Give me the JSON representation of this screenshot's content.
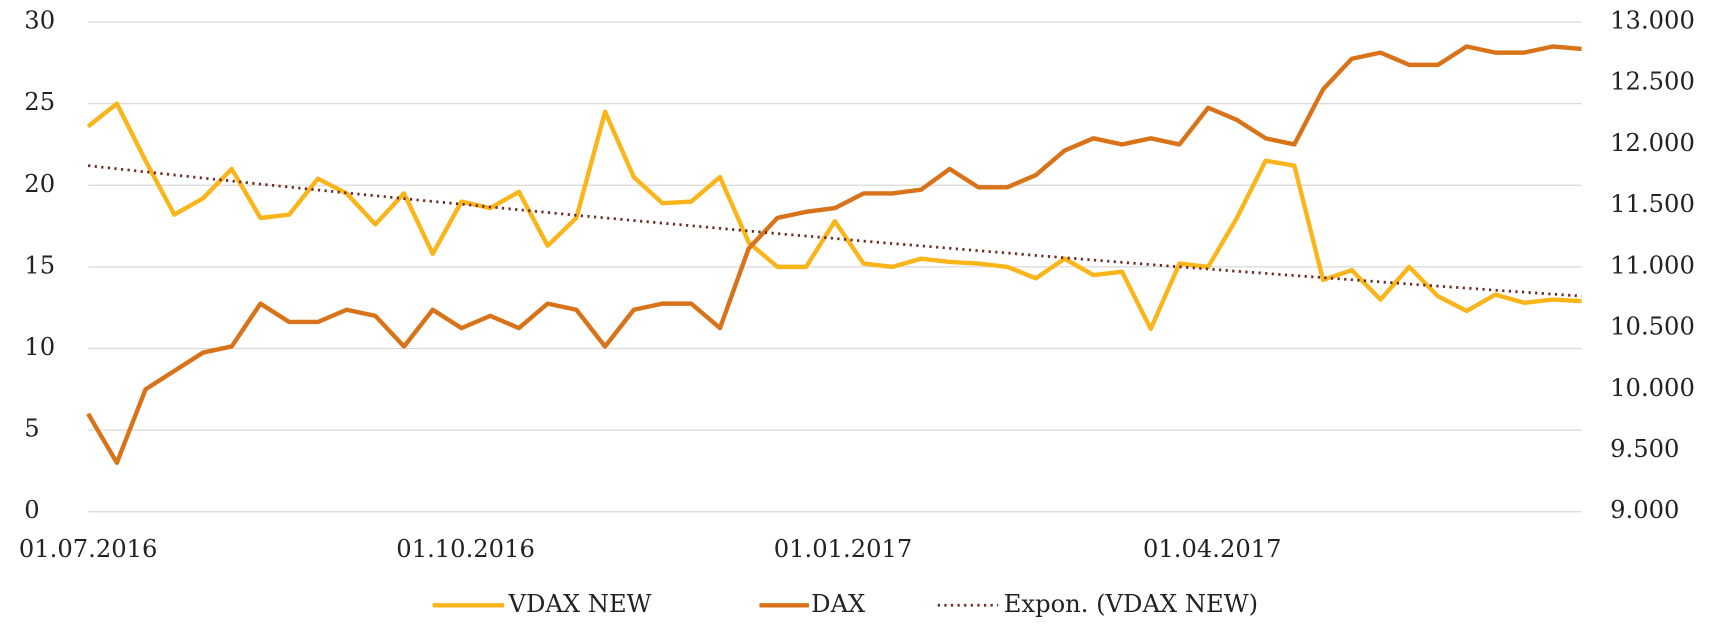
{
  "chart_data": {
    "type": "line",
    "x": [
      "01.07.2016",
      "08.07.2016",
      "15.07.2016",
      "22.07.2016",
      "29.07.2016",
      "05.08.2016",
      "12.08.2016",
      "19.08.2016",
      "26.08.2016",
      "02.09.2016",
      "09.09.2016",
      "16.09.2016",
      "23.09.2016",
      "30.09.2016",
      "07.10.2016",
      "14.10.2016",
      "21.10.2016",
      "28.10.2016",
      "04.11.2016",
      "11.11.2016",
      "18.11.2016",
      "25.11.2016",
      "02.12.2016",
      "09.12.2016",
      "16.12.2016",
      "23.12.2016",
      "30.12.2016",
      "06.01.2017",
      "13.01.2017",
      "20.01.2017",
      "27.01.2017",
      "03.02.2017",
      "10.02.2017",
      "17.02.2017",
      "24.02.2017",
      "03.03.2017",
      "10.03.2017",
      "17.03.2017",
      "24.03.2017",
      "31.03.2017",
      "07.04.2017",
      "14.04.2017",
      "21.04.2017",
      "28.04.2017",
      "05.05.2017",
      "12.05.2017",
      "19.05.2017",
      "26.05.2017",
      "02.06.2017",
      "09.06.2017",
      "16.06.2017",
      "23.06.2017",
      "30.06.2017"
    ],
    "series": [
      {
        "name": "VDAX NEW",
        "color": "#f9b51a",
        "style": "solid",
        "axis": "y",
        "values": [
          23.6,
          25.0,
          21.5,
          18.2,
          19.2,
          21.0,
          18.0,
          18.2,
          20.4,
          19.5,
          17.6,
          19.5,
          15.8,
          19.0,
          18.6,
          19.6,
          16.3,
          18.0,
          24.5,
          20.5,
          18.9,
          19.0,
          20.5,
          16.5,
          15.0,
          15.0,
          17.8,
          15.2,
          15.0,
          15.5,
          15.3,
          15.2,
          15.0,
          14.3,
          15.5,
          14.5,
          14.7,
          11.2,
          15.2,
          15.0,
          18.0,
          21.5,
          21.2,
          14.2,
          14.8,
          13.0,
          15.0,
          13.2,
          12.3,
          13.3,
          12.8,
          13.0,
          12.9
        ]
      },
      {
        "name": "DAX",
        "color": "#d9731a",
        "style": "solid",
        "axis": "y2",
        "values": [
          9800,
          9400,
          10000,
          10150,
          10300,
          10350,
          10700,
          10550,
          10550,
          10650,
          10600,
          10350,
          10650,
          10500,
          10600,
          10500,
          10700,
          10650,
          10350,
          10650,
          10700,
          10700,
          10500,
          11150,
          11400,
          11450,
          11480,
          11600,
          11600,
          11630,
          11800,
          11650,
          11650,
          11750,
          11950,
          12050,
          12000,
          12050,
          12000,
          12300,
          12200,
          12050,
          12000,
          12450,
          12700,
          12750,
          12650,
          12650,
          12800,
          12750,
          12750,
          12800,
          12780
        ]
      },
      {
        "name": "Expon. (VDAX NEW)",
        "color": "#6b2a24",
        "style": "dotted",
        "axis": "y",
        "values": [
          21.2,
          21.01,
          20.82,
          20.63,
          20.44,
          20.26,
          20.07,
          19.89,
          19.71,
          19.53,
          19.36,
          19.18,
          19.01,
          18.84,
          18.67,
          18.5,
          18.33,
          18.16,
          18.0,
          17.84,
          17.68,
          17.52,
          17.36,
          17.2,
          17.04,
          16.89,
          16.74,
          16.58,
          16.43,
          16.29,
          16.14,
          15.99,
          15.85,
          15.7,
          15.56,
          15.42,
          15.28,
          15.14,
          15.0,
          14.87,
          14.73,
          14.6,
          14.47,
          14.34,
          14.21,
          14.08,
          13.95,
          13.82,
          13.7,
          13.57,
          13.45,
          13.33,
          13.21
        ]
      }
    ],
    "xlim": [
      "01.07.2016",
      "30.06.2017"
    ],
    "xticks": [
      "01.07.2016",
      "01.10.2016",
      "01.01.2017",
      "01.04.2017"
    ],
    "ylim": [
      0,
      30
    ],
    "yticks": [
      0,
      5,
      10,
      15,
      20,
      25,
      30
    ],
    "y2lim": [
      9000,
      13000
    ],
    "y2ticks": [
      {
        "value": 9000,
        "label": "9.000"
      },
      {
        "value": 9500,
        "label": "9.500"
      },
      {
        "value": 10000,
        "label": "10.000"
      },
      {
        "value": 10500,
        "label": "10.500"
      },
      {
        "value": 11000,
        "label": "11.000"
      },
      {
        "value": 11500,
        "label": "11.500"
      },
      {
        "value": 12000,
        "label": "12.000"
      },
      {
        "value": 12500,
        "label": "12.500"
      },
      {
        "value": 13000,
        "label": "13.000"
      }
    ],
    "grid": true,
    "legend": "bottom"
  }
}
